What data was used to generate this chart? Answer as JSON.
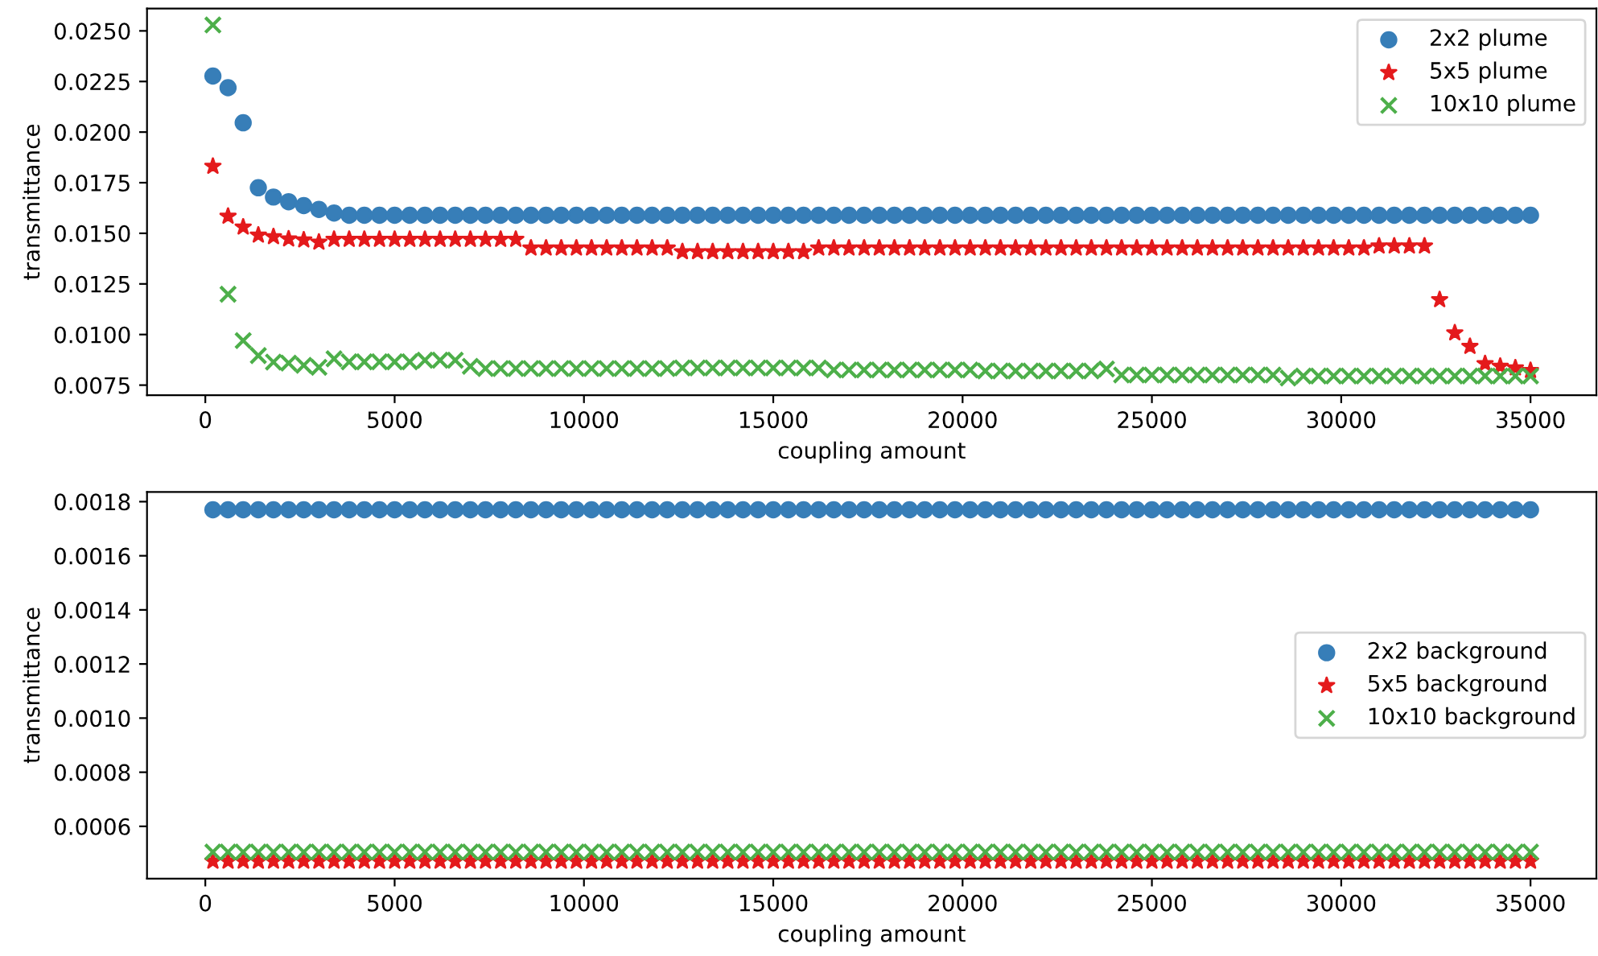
{
  "chart_data": [
    {
      "type": "scatter",
      "xlabel": "coupling amount",
      "ylabel": "transmittance",
      "legend": "top right",
      "grid": false,
      "x": [
        200,
        600,
        1000,
        1400,
        1800,
        2200,
        2600,
        3000,
        3400,
        3800,
        4200,
        4600,
        5000,
        5400,
        5800,
        6200,
        6600,
        7000,
        7400,
        7800,
        8200,
        8600,
        9000,
        9400,
        9800,
        10200,
        10600,
        11000,
        11400,
        11800,
        12200,
        12600,
        13000,
        13400,
        13800,
        14200,
        14600,
        15000,
        15400,
        15800,
        16200,
        16600,
        17000,
        17400,
        17800,
        18200,
        18600,
        19000,
        19400,
        19800,
        20200,
        20600,
        21000,
        21400,
        21800,
        22200,
        22600,
        23000,
        23400,
        23800,
        24200,
        24600,
        25000,
        25400,
        25800,
        26200,
        26600,
        27000,
        27400,
        27800,
        28200,
        28600,
        29000,
        29400,
        29800,
        30200,
        30600,
        31000,
        31400,
        31800,
        32200,
        32600,
        33000,
        33400,
        33800,
        34200,
        34600,
        35000
      ],
      "xlim": [
        -1540,
        36740
      ],
      "xticks": [
        0,
        5000,
        10000,
        15000,
        20000,
        25000,
        30000,
        35000
      ],
      "ylim": [
        0.007,
        0.0261
      ],
      "yticks": [
        {
          "value": 0.0075,
          "label": "0.0075"
        },
        {
          "value": 0.01,
          "label": "0.0100"
        },
        {
          "value": 0.0125,
          "label": "0.0125"
        },
        {
          "value": 0.015,
          "label": "0.0150"
        },
        {
          "value": 0.0175,
          "label": "0.0175"
        },
        {
          "value": 0.02,
          "label": "0.0200"
        },
        {
          "value": 0.0225,
          "label": "0.0225"
        },
        {
          "value": 0.025,
          "label": "0.0250"
        }
      ],
      "series": [
        {
          "name": "2x2 plume",
          "color": "#377eb8",
          "marker": "circle",
          "values": [
            0.02277,
            0.02219,
            0.02046,
            0.01725,
            0.01679,
            0.01656,
            0.01637,
            0.01618,
            0.016,
            0.01589,
            0.01589,
            0.01589,
            0.01589,
            0.01589,
            0.01589,
            0.01589,
            0.01589,
            0.01589,
            0.01589,
            0.01589,
            0.01589,
            0.01589,
            0.01589,
            0.01589,
            0.01589,
            0.01589,
            0.01589,
            0.01589,
            0.01589,
            0.01589,
            0.01589,
            0.01589,
            0.01589,
            0.01589,
            0.01589,
            0.01589,
            0.01589,
            0.01589,
            0.01589,
            0.01589,
            0.01589,
            0.01589,
            0.01589,
            0.01589,
            0.01589,
            0.01589,
            0.01589,
            0.01589,
            0.01589,
            0.01589,
            0.01589,
            0.01589,
            0.01589,
            0.01589,
            0.01589,
            0.01589,
            0.01589,
            0.01589,
            0.01589,
            0.01589,
            0.01589,
            0.01589,
            0.01589,
            0.01589,
            0.01589,
            0.01589,
            0.01589,
            0.01589,
            0.01589,
            0.01589,
            0.01589,
            0.01589,
            0.01589,
            0.01589,
            0.01589,
            0.01589,
            0.01589,
            0.01589,
            0.01589,
            0.01589,
            0.01589,
            0.01589,
            0.01589,
            0.01589,
            0.01589,
            0.01589,
            0.01589,
            0.01589
          ]
        },
        {
          "name": "5x5 plume",
          "color": "#e41a1c",
          "marker": "star",
          "values": [
            0.01831,
            0.01584,
            0.01531,
            0.01491,
            0.01483,
            0.01472,
            0.01467,
            0.01456,
            0.0147,
            0.0147,
            0.0147,
            0.0147,
            0.0147,
            0.0147,
            0.0147,
            0.0147,
            0.0147,
            0.0147,
            0.0147,
            0.0147,
            0.0147,
            0.01427,
            0.01427,
            0.01427,
            0.01427,
            0.01427,
            0.01427,
            0.01427,
            0.01427,
            0.01427,
            0.01427,
            0.01409,
            0.01409,
            0.01409,
            0.01409,
            0.01409,
            0.01409,
            0.01409,
            0.01409,
            0.01409,
            0.01427,
            0.01427,
            0.01427,
            0.01427,
            0.01427,
            0.01427,
            0.01427,
            0.01427,
            0.01427,
            0.01427,
            0.01427,
            0.01427,
            0.01427,
            0.01427,
            0.01427,
            0.01427,
            0.01427,
            0.01427,
            0.01427,
            0.01427,
            0.01427,
            0.01427,
            0.01427,
            0.01427,
            0.01427,
            0.01427,
            0.01427,
            0.01427,
            0.01427,
            0.01427,
            0.01427,
            0.01427,
            0.01427,
            0.01427,
            0.01427,
            0.01427,
            0.01427,
            0.01437,
            0.01437,
            0.01437,
            0.01437,
            0.01172,
            0.01008,
            0.00941,
            0.00856,
            0.00843,
            0.00835,
            0.00822
          ]
        },
        {
          "name": "10x10 plume",
          "color": "#4daf4a",
          "marker": "cross",
          "values": [
            0.02529,
            0.01199,
            0.0097,
            0.00896,
            0.00864,
            0.00859,
            0.00848,
            0.00838,
            0.0088,
            0.00865,
            0.00865,
            0.00865,
            0.00865,
            0.00865,
            0.00873,
            0.00873,
            0.00873,
            0.00843,
            0.00832,
            0.00832,
            0.00832,
            0.00832,
            0.00832,
            0.00832,
            0.00832,
            0.00832,
            0.00832,
            0.00832,
            0.00832,
            0.00832,
            0.00832,
            0.00835,
            0.00835,
            0.00835,
            0.00835,
            0.00835,
            0.00835,
            0.00835,
            0.00835,
            0.00835,
            0.00835,
            0.00825,
            0.00825,
            0.00825,
            0.00825,
            0.00825,
            0.00825,
            0.00825,
            0.00825,
            0.00825,
            0.00825,
            0.0082,
            0.0082,
            0.0082,
            0.0082,
            0.0082,
            0.0082,
            0.0082,
            0.0082,
            0.0083,
            0.008,
            0.008,
            0.008,
            0.008,
            0.008,
            0.008,
            0.008,
            0.008,
            0.008,
            0.008,
            0.008,
            0.00785,
            0.00795,
            0.00795,
            0.00795,
            0.00795,
            0.00795,
            0.00795,
            0.00795,
            0.00795,
            0.00795,
            0.00795,
            0.00795,
            0.00795,
            0.00795,
            0.00795,
            0.00795,
            0.00795
          ]
        }
      ]
    },
    {
      "type": "scatter",
      "xlabel": "coupling amount",
      "ylabel": "transmittance",
      "legend": "right",
      "grid": false,
      "x": [
        200,
        600,
        1000,
        1400,
        1800,
        2200,
        2600,
        3000,
        3400,
        3800,
        4200,
        4600,
        5000,
        5400,
        5800,
        6200,
        6600,
        7000,
        7400,
        7800,
        8200,
        8600,
        9000,
        9400,
        9800,
        10200,
        10600,
        11000,
        11400,
        11800,
        12200,
        12600,
        13000,
        13400,
        13800,
        14200,
        14600,
        15000,
        15400,
        15800,
        16200,
        16600,
        17000,
        17400,
        17800,
        18200,
        18600,
        19000,
        19400,
        19800,
        20200,
        20600,
        21000,
        21400,
        21800,
        22200,
        22600,
        23000,
        23400,
        23800,
        24200,
        24600,
        25000,
        25400,
        25800,
        26200,
        26600,
        27000,
        27400,
        27800,
        28200,
        28600,
        29000,
        29400,
        29800,
        30200,
        30600,
        31000,
        31400,
        31800,
        32200,
        32600,
        33000,
        33400,
        33800,
        34200,
        34600,
        35000
      ],
      "xlim": [
        -1540,
        36740
      ],
      "xticks": [
        0,
        5000,
        10000,
        15000,
        20000,
        25000,
        30000,
        35000
      ],
      "ylim": [
        0.000407,
        0.001836
      ],
      "yticks": [
        {
          "value": 0.0006,
          "label": "0.0006"
        },
        {
          "value": 0.0008,
          "label": "0.0008"
        },
        {
          "value": 0.001,
          "label": "0.0010"
        },
        {
          "value": 0.0012,
          "label": "0.0012"
        },
        {
          "value": 0.0014,
          "label": "0.0014"
        },
        {
          "value": 0.0016,
          "label": "0.0016"
        },
        {
          "value": 0.0018,
          "label": "0.0018"
        }
      ],
      "series": [
        {
          "name": "2x2 background",
          "color": "#377eb8",
          "marker": "circle",
          "values": [
            0.00177,
            0.00177,
            0.00177,
            0.00177,
            0.00177,
            0.00177,
            0.00177,
            0.00177,
            0.00177,
            0.00177,
            0.00177,
            0.00177,
            0.00177,
            0.00177,
            0.00177,
            0.00177,
            0.00177,
            0.00177,
            0.00177,
            0.00177,
            0.00177,
            0.00177,
            0.00177,
            0.00177,
            0.00177,
            0.00177,
            0.00177,
            0.00177,
            0.00177,
            0.00177,
            0.00177,
            0.00177,
            0.00177,
            0.00177,
            0.00177,
            0.00177,
            0.00177,
            0.00177,
            0.00177,
            0.00177,
            0.00177,
            0.00177,
            0.00177,
            0.00177,
            0.00177,
            0.00177,
            0.00177,
            0.00177,
            0.00177,
            0.00177,
            0.00177,
            0.00177,
            0.00177,
            0.00177,
            0.00177,
            0.00177,
            0.00177,
            0.00177,
            0.00177,
            0.00177,
            0.00177,
            0.00177,
            0.00177,
            0.00177,
            0.00177,
            0.00177,
            0.00177,
            0.00177,
            0.00177,
            0.00177,
            0.00177,
            0.00177,
            0.00177,
            0.00177,
            0.00177,
            0.00177,
            0.00177,
            0.00177,
            0.00177,
            0.00177,
            0.00177,
            0.00177,
            0.00177,
            0.00177,
            0.00177,
            0.00177,
            0.00177,
            0.00177
          ]
        },
        {
          "name": "5x5 background",
          "color": "#e41a1c",
          "marker": "star",
          "values": [
            0.000471,
            0.000471,
            0.000471,
            0.000471,
            0.000471,
            0.000471,
            0.000471,
            0.000471,
            0.000471,
            0.000471,
            0.000471,
            0.000471,
            0.000471,
            0.000471,
            0.000471,
            0.000471,
            0.000471,
            0.000471,
            0.000471,
            0.000471,
            0.000471,
            0.000471,
            0.000471,
            0.000471,
            0.000471,
            0.000471,
            0.000471,
            0.000471,
            0.000471,
            0.000471,
            0.000471,
            0.000471,
            0.000471,
            0.000471,
            0.000471,
            0.000471,
            0.000471,
            0.000471,
            0.000471,
            0.000471,
            0.000471,
            0.000471,
            0.000471,
            0.000471,
            0.000471,
            0.000471,
            0.000471,
            0.000471,
            0.000471,
            0.000471,
            0.000471,
            0.000471,
            0.000471,
            0.000471,
            0.000471,
            0.000471,
            0.000471,
            0.000471,
            0.000471,
            0.000471,
            0.000471,
            0.000471,
            0.000471,
            0.000471,
            0.000471,
            0.000471,
            0.000471,
            0.000471,
            0.000471,
            0.000471,
            0.000471,
            0.000471,
            0.000471,
            0.000471,
            0.000471,
            0.000471,
            0.000471,
            0.000471,
            0.000471,
            0.000471,
            0.000471,
            0.000471,
            0.000471,
            0.000471,
            0.000471,
            0.000471,
            0.000471,
            0.000471
          ]
        },
        {
          "name": "10x10 background",
          "color": "#4daf4a",
          "marker": "cross",
          "values": [
            0.000505,
            0.000505,
            0.000505,
            0.000505,
            0.000505,
            0.000505,
            0.000505,
            0.000505,
            0.000505,
            0.000505,
            0.000505,
            0.000505,
            0.000505,
            0.000505,
            0.000505,
            0.000505,
            0.000505,
            0.000505,
            0.000505,
            0.000505,
            0.000505,
            0.000505,
            0.000505,
            0.000505,
            0.000505,
            0.000505,
            0.000505,
            0.000505,
            0.000505,
            0.000505,
            0.000505,
            0.000505,
            0.000505,
            0.000505,
            0.000505,
            0.000505,
            0.000505,
            0.000505,
            0.000505,
            0.000505,
            0.000505,
            0.000505,
            0.000505,
            0.000505,
            0.000505,
            0.000505,
            0.000505,
            0.000505,
            0.000505,
            0.000505,
            0.000505,
            0.000505,
            0.000505,
            0.000505,
            0.000505,
            0.000505,
            0.000505,
            0.000505,
            0.000505,
            0.000505,
            0.000505,
            0.000505,
            0.000505,
            0.000505,
            0.000505,
            0.000505,
            0.000505,
            0.000505,
            0.000505,
            0.000505,
            0.000505,
            0.000505,
            0.000505,
            0.000505,
            0.000505,
            0.000505,
            0.000505,
            0.000505,
            0.000505,
            0.000505,
            0.000505,
            0.000505,
            0.000505,
            0.000505,
            0.000505,
            0.000505,
            0.000505,
            0.000505
          ]
        }
      ]
    }
  ]
}
